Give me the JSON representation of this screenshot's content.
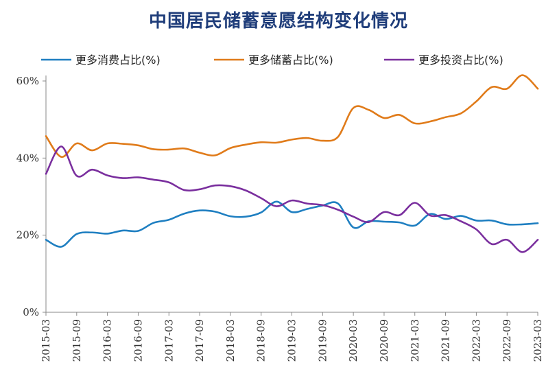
{
  "chart_data": {
    "type": "line",
    "title": "中国居民储蓄意愿结构变化情况",
    "xlabel": "",
    "ylabel": "",
    "ylim": [
      0,
      60
    ],
    "y_ticks": [
      "0%",
      "20%",
      "40%",
      "60%"
    ],
    "y_tick_values": [
      0,
      20,
      40,
      60
    ],
    "grid": false,
    "legend_position": "top",
    "x_categories": [
      "2015-03",
      "2015-06",
      "2015-09",
      "2015-12",
      "2016-03",
      "2016-06",
      "2016-09",
      "2016-12",
      "2017-03",
      "2017-06",
      "2017-09",
      "2017-12",
      "2018-03",
      "2018-06",
      "2018-09",
      "2018-12",
      "2019-03",
      "2019-06",
      "2019-09",
      "2019-12",
      "2020-03",
      "2020-06",
      "2020-09",
      "2020-12",
      "2021-03",
      "2021-06",
      "2021-09",
      "2021-12",
      "2022-03",
      "2022-06",
      "2022-09",
      "2022-12",
      "2023-03"
    ],
    "x_tick_labels": [
      "2015-03",
      "2015-09",
      "2016-03",
      "2016-09",
      "2017-03",
      "2017-09",
      "2018-03",
      "2018-09",
      "2019-03",
      "2019-09",
      "2020-03",
      "2020-09",
      "2021-03",
      "2021-09",
      "2022-03",
      "2022-09",
      "2023-03"
    ],
    "series": [
      {
        "name": "更多消费占比(%)",
        "color": "#1f7fc1",
        "values": [
          18.8,
          17.0,
          20.3,
          20.7,
          20.4,
          21.2,
          21.1,
          23.2,
          24.0,
          25.6,
          26.4,
          26.1,
          24.9,
          24.8,
          25.9,
          28.7,
          26.0,
          26.8,
          27.7,
          28.2,
          22.0,
          23.6,
          23.5,
          23.3,
          22.5,
          25.5,
          24.2,
          25.0,
          23.8,
          23.8,
          22.8,
          22.8,
          23.1
        ]
      },
      {
        "name": "更多储蓄占比(%)",
        "color": "#e07b1a",
        "values": [
          45.7,
          40.3,
          43.8,
          42.0,
          43.8,
          43.7,
          43.3,
          42.3,
          42.2,
          42.5,
          41.4,
          40.7,
          42.6,
          43.5,
          44.1,
          44.0,
          44.8,
          45.2,
          44.5,
          45.5,
          53.0,
          52.5,
          50.4,
          51.2,
          49.0,
          49.5,
          50.6,
          51.6,
          54.7,
          58.4,
          58.0,
          61.5,
          58.0
        ]
      },
      {
        "name": "更多投资占比(%)",
        "color": "#7a2f9e",
        "values": [
          35.9,
          43.0,
          35.4,
          37.0,
          35.5,
          34.8,
          35.0,
          34.4,
          33.7,
          31.7,
          31.9,
          32.9,
          32.7,
          31.6,
          29.6,
          27.5,
          29.0,
          28.2,
          27.8,
          26.6,
          24.8,
          23.4,
          26.0,
          25.2,
          28.4,
          25.1,
          25.2,
          23.6,
          21.5,
          17.7,
          18.8,
          15.6,
          18.8
        ]
      }
    ]
  }
}
